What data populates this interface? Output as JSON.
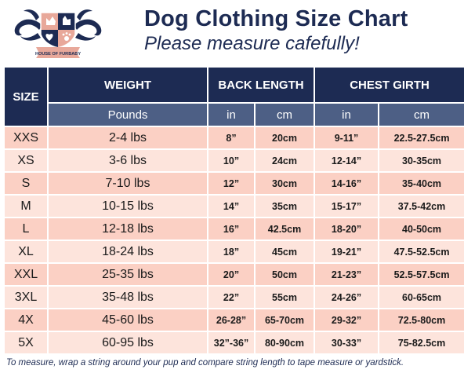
{
  "logo": {
    "icon": "house-of-furbaby-crest",
    "text": "HOUSE OF FURBABY"
  },
  "title": "Dog Clothing Size Chart",
  "subtitle": "Please measure cafefully!",
  "headers": {
    "size": "SIZE",
    "weight": "WEIGHT",
    "back_length": "BACK LENGTH",
    "chest_girth": "CHEST GIRTH",
    "weight_unit": "Pounds",
    "back_in": "in",
    "back_cm": "cm",
    "chest_in": "in",
    "chest_cm": "cm"
  },
  "rows": [
    {
      "size": "XXS",
      "weight": "2-4 lbs",
      "back_in": "8”",
      "back_cm": "20cm",
      "chest_in": "9-11”",
      "chest_cm": "22.5-27.5cm"
    },
    {
      "size": "XS",
      "weight": "3-6 lbs",
      "back_in": "10”",
      "back_cm": "24cm",
      "chest_in": "12-14”",
      "chest_cm": "30-35cm"
    },
    {
      "size": "S",
      "weight": "7-10 lbs",
      "back_in": "12”",
      "back_cm": "30cm",
      "chest_in": "14-16”",
      "chest_cm": "35-40cm"
    },
    {
      "size": "M",
      "weight": "10-15 lbs",
      "back_in": "14”",
      "back_cm": "35cm",
      "chest_in": "15-17”",
      "chest_cm": "37.5-42cm"
    },
    {
      "size": "L",
      "weight": "12-18 lbs",
      "back_in": "16”",
      "back_cm": "42.5cm",
      "chest_in": "18-20”",
      "chest_cm": "40-50cm"
    },
    {
      "size": "XL",
      "weight": "18-24 lbs",
      "back_in": "18”",
      "back_cm": "45cm",
      "chest_in": "19-21”",
      "chest_cm": "47.5-52.5cm"
    },
    {
      "size": "XXL",
      "weight": "25-35 lbs",
      "back_in": "20”",
      "back_cm": "50cm",
      "chest_in": "21-23”",
      "chest_cm": "52.5-57.5cm"
    },
    {
      "size": "3XL",
      "weight": "35-48 lbs",
      "back_in": "22”",
      "back_cm": "55cm",
      "chest_in": "24-26”",
      "chest_cm": "60-65cm"
    },
    {
      "size": "4X",
      "weight": "45-60 lbs",
      "back_in": "26-28”",
      "back_cm": "65-70cm",
      "chest_in": "29-32”",
      "chest_cm": "72.5-80cm"
    },
    {
      "size": "5X",
      "weight": "60-95 lbs",
      "back_in": "32”-36”",
      "back_cm": "80-90cm",
      "chest_in": "30-33”",
      "chest_cm": "75-82.5cm"
    }
  ],
  "footnote": "To measure, wrap a string around your pup and compare string length to tape measure or yardstick.",
  "colors": {
    "navy": "#1d2b53",
    "slate": "#4d5f85",
    "row_light": "#fde4dc",
    "row_dark": "#fbd0c4"
  }
}
